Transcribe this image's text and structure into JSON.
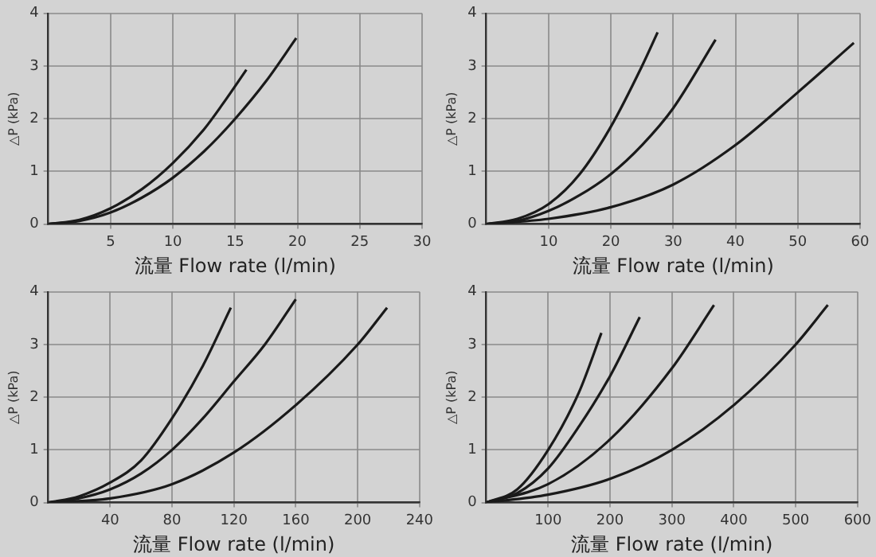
{
  "chart_data": [
    {
      "type": "line",
      "xlabel": "流量 Flow rate (l/min)",
      "ylabel": "△P (kPa)",
      "xlim": [
        0,
        30
      ],
      "xticks": [
        5,
        10,
        15,
        20,
        25,
        30
      ],
      "ylim": [
        0,
        4
      ],
      "yticks": [
        0,
        1,
        2,
        3,
        4
      ],
      "grid": true,
      "marker": "none",
      "line_style": "solid",
      "series": [
        {
          "color": "#1a1a1a",
          "x": [
            0,
            2.5,
            5,
            7.5,
            10,
            12.5,
            14,
            15.9
          ],
          "values": [
            0,
            0.08,
            0.3,
            0.66,
            1.16,
            1.8,
            2.28,
            2.93
          ]
        },
        {
          "color": "#1a1a1a",
          "x": [
            0,
            2.5,
            5,
            7.5,
            10,
            12.5,
            15,
            17.5,
            19.9
          ],
          "values": [
            0,
            0.06,
            0.22,
            0.5,
            0.88,
            1.38,
            2.0,
            2.72,
            3.53
          ]
        }
      ]
    },
    {
      "type": "line",
      "xlabel": "流量 Flow rate (l/min)",
      "ylabel": "△P (kPa)",
      "xlim": [
        0,
        60
      ],
      "xticks": [
        10,
        20,
        30,
        40,
        50,
        60
      ],
      "ylim": [
        0,
        4
      ],
      "yticks": [
        0,
        1,
        2,
        3,
        4
      ],
      "grid": true,
      "marker": "none",
      "line_style": "solid",
      "series": [
        {
          "color": "#1a1a1a",
          "x": [
            0,
            5,
            10,
            15,
            20,
            25,
            27.5
          ],
          "values": [
            0,
            0.1,
            0.38,
            0.95,
            1.85,
            3.0,
            3.64
          ]
        },
        {
          "color": "#1a1a1a",
          "x": [
            0,
            5,
            10,
            15,
            20,
            25,
            30,
            36.8
          ],
          "values": [
            0,
            0.06,
            0.25,
            0.55,
            0.95,
            1.5,
            2.2,
            3.5
          ]
        },
        {
          "color": "#1a1a1a",
          "x": [
            0,
            10,
            20,
            30,
            40,
            50,
            59
          ],
          "values": [
            0,
            0.1,
            0.32,
            0.75,
            1.5,
            2.5,
            3.44
          ]
        }
      ]
    },
    {
      "type": "line",
      "xlabel": "流量 Flow rate (l/min)",
      "ylabel": "△P (kPa)",
      "xlim": [
        0,
        240
      ],
      "xticks": [
        40,
        80,
        120,
        160,
        200,
        240
      ],
      "ylim": [
        0,
        4
      ],
      "yticks": [
        0,
        1,
        2,
        3,
        4
      ],
      "grid": true,
      "marker": "none",
      "line_style": "solid",
      "series": [
        {
          "color": "#1a1a1a",
          "x": [
            0,
            20,
            40,
            60,
            80,
            100,
            118
          ],
          "values": [
            0,
            0.12,
            0.38,
            0.8,
            1.6,
            2.6,
            3.7
          ]
        },
        {
          "color": "#1a1a1a",
          "x": [
            0,
            20,
            40,
            60,
            80,
            100,
            120,
            140,
            160
          ],
          "values": [
            0,
            0.08,
            0.25,
            0.55,
            1.0,
            1.6,
            2.3,
            3.0,
            3.86
          ]
        },
        {
          "color": "#1a1a1a",
          "x": [
            0,
            40,
            80,
            120,
            160,
            200,
            219
          ],
          "values": [
            0,
            0.08,
            0.35,
            0.95,
            1.85,
            3.0,
            3.7
          ]
        }
      ]
    },
    {
      "type": "line",
      "xlabel": "流量 Flow rate (l/min)",
      "ylabel": "△P (kPa)",
      "xlim": [
        0,
        600
      ],
      "xticks": [
        100,
        200,
        300,
        400,
        500,
        600
      ],
      "ylim": [
        0,
        4
      ],
      "yticks": [
        0,
        1,
        2,
        3,
        4
      ],
      "grid": true,
      "marker": "none",
      "line_style": "solid",
      "series": [
        {
          "color": "#1a1a1a",
          "x": [
            0,
            50,
            100,
            150,
            186
          ],
          "values": [
            0,
            0.25,
            1.0,
            2.1,
            3.22
          ]
        },
        {
          "color": "#1a1a1a",
          "x": [
            0,
            50,
            100,
            150,
            200,
            248
          ],
          "values": [
            0,
            0.18,
            0.65,
            1.45,
            2.4,
            3.52
          ]
        },
        {
          "color": "#1a1a1a",
          "x": [
            0,
            100,
            200,
            300,
            368
          ],
          "values": [
            0,
            0.35,
            1.2,
            2.55,
            3.75
          ]
        },
        {
          "color": "#1a1a1a",
          "x": [
            0,
            100,
            200,
            300,
            400,
            500,
            552
          ],
          "values": [
            0,
            0.15,
            0.45,
            1.0,
            1.85,
            3.0,
            3.75
          ]
        }
      ]
    }
  ]
}
